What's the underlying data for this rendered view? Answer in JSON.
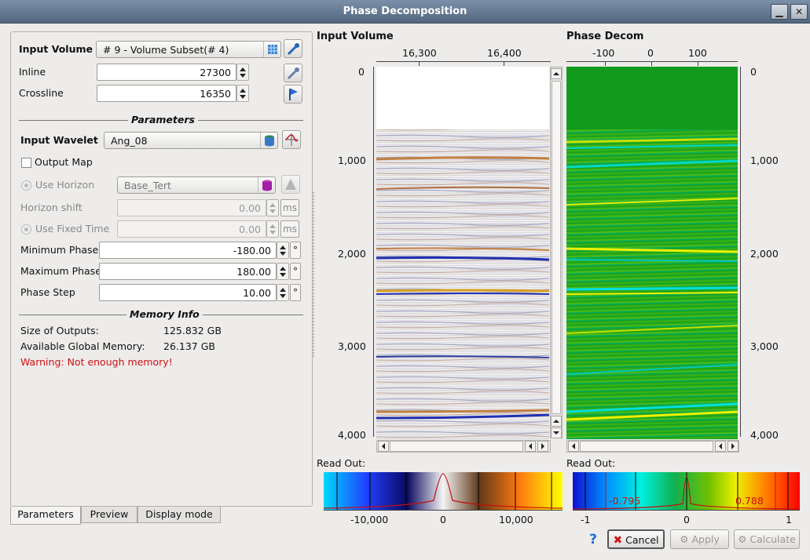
{
  "window": {
    "title": "Phase Decomposition"
  },
  "params": {
    "input_volume_label": "Input Volume",
    "input_volume_value": "# 9 - Volume Subset(# 4)",
    "inline_label": "Inline",
    "inline_value": "27300",
    "crossline_label": "Crossline",
    "crossline_value": "16350",
    "parameters_heading": "Parameters",
    "input_wavelet_label": "Input Wavelet",
    "input_wavelet_value": "Ang_08",
    "output_map_label": "Output Map",
    "output_map_checked": false,
    "use_horizon_label": "Use Horizon",
    "horizon_value": "Base_Tert",
    "horizon_shift_label": "Horizon shift",
    "horizon_shift_value": "0.00",
    "use_fixed_time_label": "Use Fixed Time",
    "fixed_time_value": "0.00",
    "unit_ms": "ms",
    "min_phase_label": "Minimum Phase",
    "min_phase_value": "-180.00",
    "max_phase_label": "Maximum Phase",
    "max_phase_value": "180.00",
    "phase_step_label": "Phase Step",
    "phase_step_value": "10.00",
    "unit_degree": "°"
  },
  "memory": {
    "heading": "Memory Info",
    "size_label": "Size of Outputs:",
    "size_value": "125.832 GB",
    "avail_label": "Available Global Memory:",
    "avail_value": "26.137 GB",
    "warning": "Warning: Not enough memory!",
    "warning_color": "#d01010"
  },
  "tabs": [
    "Parameters",
    "Preview",
    "Display mode"
  ],
  "viewer_input": {
    "title": "Input Volume",
    "x_ticks": [
      "16,300",
      "16,400"
    ],
    "y_ticks": [
      "0",
      "1,000",
      "2,000",
      "3,000",
      "4,000"
    ],
    "readout_label": "Read Out:",
    "colorbar_ticks": [
      "-10,000",
      "0",
      "10,000"
    ]
  },
  "viewer_phase": {
    "title": "Phase Decom",
    "x_ticks": [
      "-100",
      "0",
      "100"
    ],
    "y_ticks": [
      "0",
      "1,000",
      "2,000",
      "3,000",
      "4,000"
    ],
    "readout_label": "Read Out:",
    "colorbar_ticks": [
      "-1",
      "0",
      "1"
    ],
    "clip_min": "-0.795",
    "clip_max": "0.788",
    "clip_color": "#cc1111"
  },
  "buttons": {
    "help_icon": "?",
    "cancel": "Cancel",
    "apply": "Apply",
    "calculate": "Calculate"
  }
}
